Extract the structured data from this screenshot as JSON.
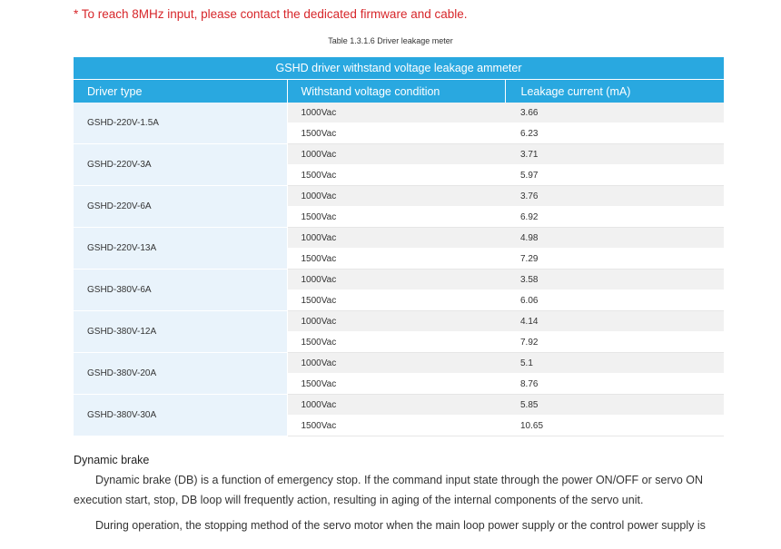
{
  "note": "* To reach 8MHz input, please contact the dedicated firmware and cable.",
  "caption": "Table 1.3.1.6 Driver leakage meter",
  "table": {
    "title": "GSHD driver withstand voltage leakage ammeter",
    "headers": [
      "Driver type",
      "Withstand voltage condition",
      "Leakage current (mA)"
    ],
    "rows": [
      {
        "type": "GSHD-220V-1.5A",
        "c1": "1000Vac",
        "v1": "3.66",
        "c2": "1500Vac",
        "v2": "6.23"
      },
      {
        "type": "GSHD-220V-3A",
        "c1": "1000Vac",
        "v1": "3.71",
        "c2": "1500Vac",
        "v2": "5.97"
      },
      {
        "type": "GSHD-220V-6A",
        "c1": "1000Vac",
        "v1": "3.76",
        "c2": "1500Vac",
        "v2": "6.92"
      },
      {
        "type": "GSHD-220V-13A",
        "c1": "1000Vac",
        "v1": "4.98",
        "c2": "1500Vac",
        "v2": "7.29"
      },
      {
        "type": "GSHD-380V-6A",
        "c1": "1000Vac",
        "v1": "3.58",
        "c2": "1500Vac",
        "v2": "6.06"
      },
      {
        "type": "GSHD-380V-12A",
        "c1": "1000Vac",
        "v1": "4.14",
        "c2": "1500Vac",
        "v2": "7.92"
      },
      {
        "type": "GSHD-380V-20A",
        "c1": "1000Vac",
        "v1": "5.1",
        "c2": "1500Vac",
        "v2": "8.76"
      },
      {
        "type": "GSHD-380V-30A",
        "c1": "1000Vac",
        "v1": "5.85",
        "c2": "1500Vac",
        "v2": "10.65"
      }
    ]
  },
  "section_title": "Dynamic brake",
  "paragraphs": [
    "Dynamic brake (DB) is a function of emergency stop. If the command input state through the power ON/OFF or servo ON execution start, stop, DB loop will frequently action, resulting in aging of the internal components of the servo unit.",
    "During operation, the stopping method of the servo motor when the main loop power supply or the control power supply is"
  ]
}
